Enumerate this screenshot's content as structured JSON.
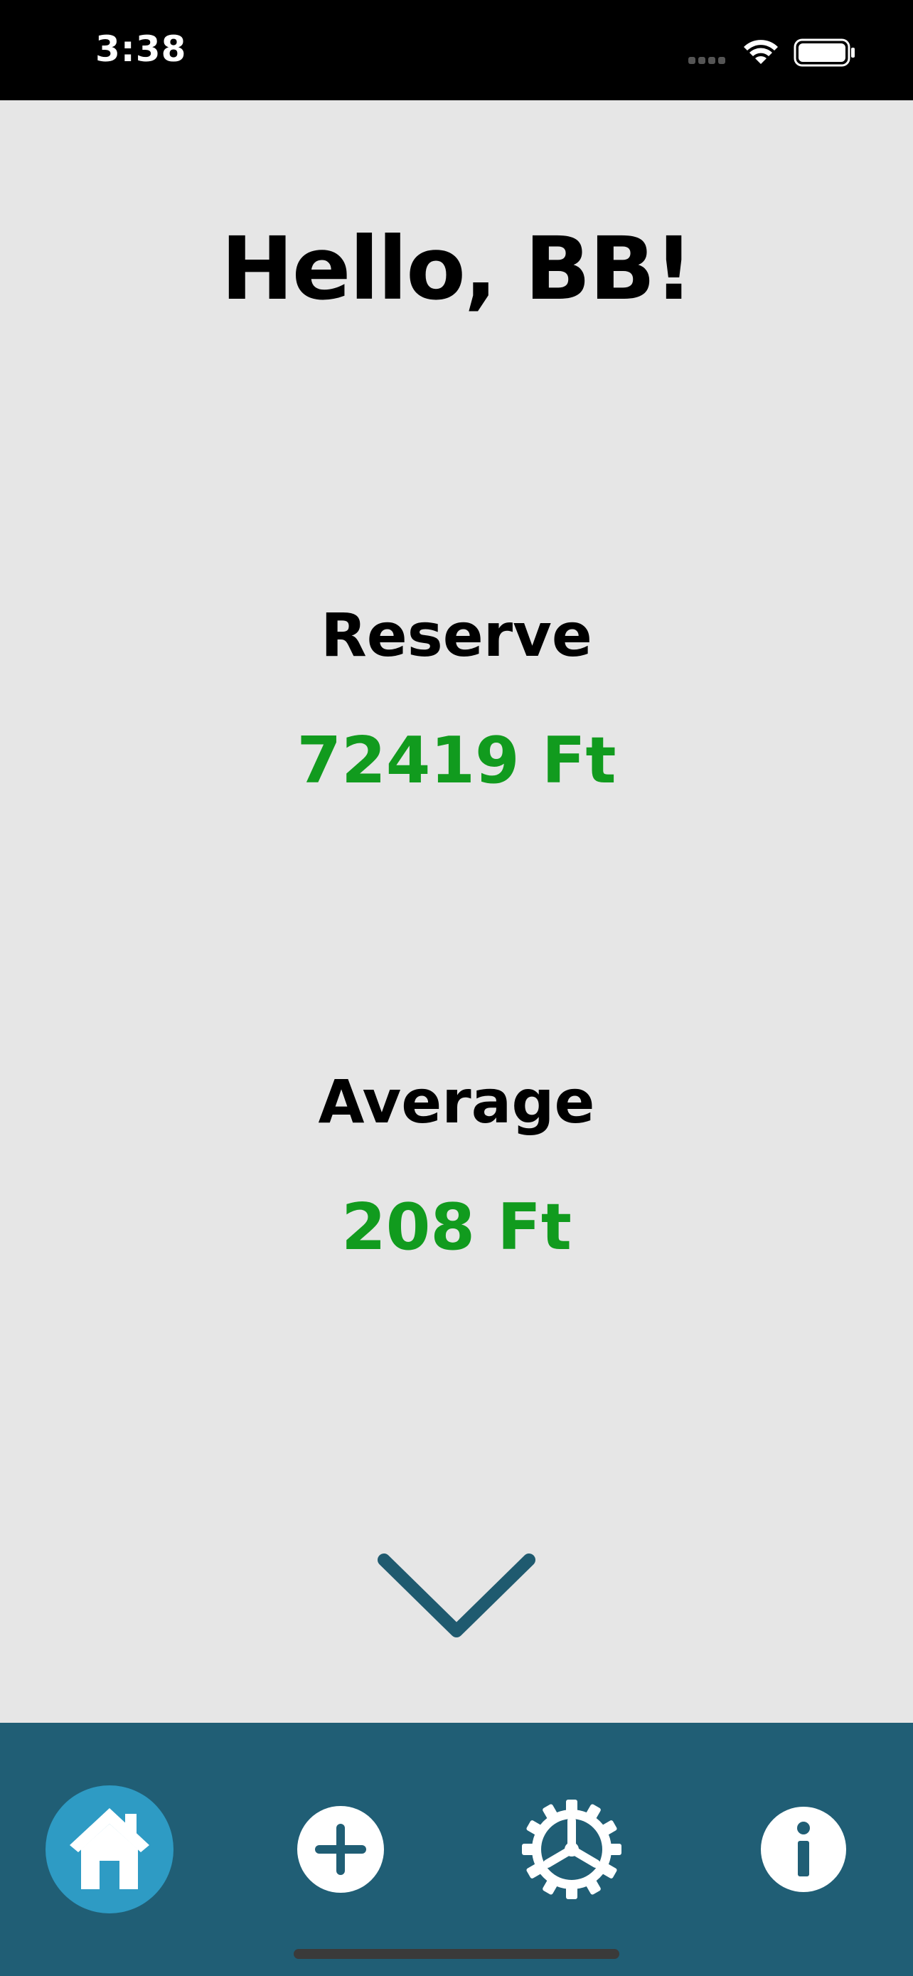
{
  "status_bar": {
    "time": "3:38"
  },
  "main": {
    "greeting": "Hello, BB!",
    "stats": [
      {
        "label": "Reserve",
        "value": "72419 Ft"
      },
      {
        "label": "Average",
        "value": "208 Ft"
      }
    ],
    "scroll_icon": "chevron-down-icon"
  },
  "tab_bar": {
    "items": [
      {
        "icon": "home-icon",
        "selected": true
      },
      {
        "icon": "plus-circle-icon",
        "selected": false
      },
      {
        "icon": "gear-icon",
        "selected": false
      },
      {
        "icon": "info-circle-icon",
        "selected": false
      }
    ]
  },
  "colors": {
    "background": "#e6e6e6",
    "status_bar": "#000000",
    "tab_bar": "#205e75",
    "tab_selected": "#2e9bc4",
    "value_green": "#119b1e",
    "chevron": "#1f5a6f"
  }
}
